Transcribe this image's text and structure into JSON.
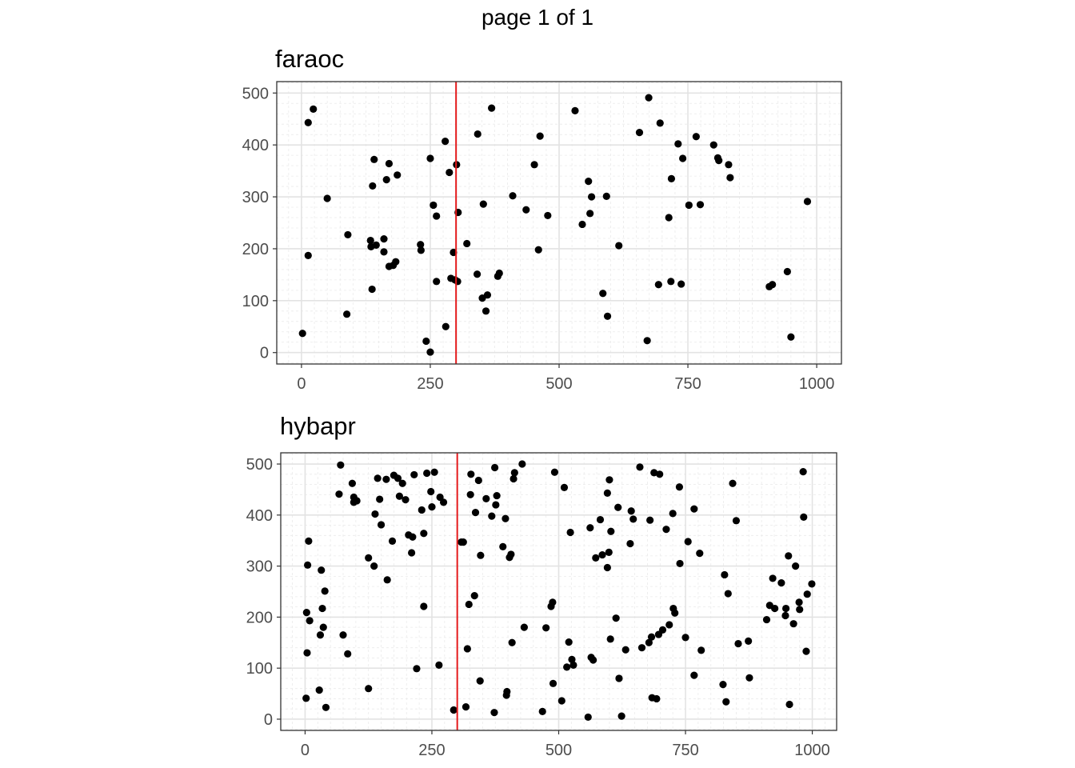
{
  "page_label": "page 1 of 1",
  "chart_data": [
    {
      "type": "scatter",
      "title": "faraoc",
      "xlabel": "",
      "ylabel": "",
      "xlim": [
        -48,
        1048
      ],
      "ylim": [
        -22,
        522
      ],
      "xticks": [
        0,
        250,
        500,
        750,
        1000
      ],
      "yticks": [
        0,
        100,
        200,
        300,
        400,
        500
      ],
      "grid": true,
      "reference_line": {
        "axis": "x",
        "value": 300,
        "color": "#e41a1c"
      },
      "points": [
        [
          2,
          37
        ],
        [
          13,
          443
        ],
        [
          23,
          469
        ],
        [
          13,
          187
        ],
        [
          50,
          297
        ],
        [
          90,
          227
        ],
        [
          88,
          74
        ],
        [
          137,
          122
        ],
        [
          134,
          216
        ],
        [
          135,
          204
        ],
        [
          138,
          321
        ],
        [
          141,
          372
        ],
        [
          145,
          207
        ],
        [
          160,
          219
        ],
        [
          160,
          194
        ],
        [
          165,
          333
        ],
        [
          170,
          166
        ],
        [
          170,
          364
        ],
        [
          178,
          168
        ],
        [
          183,
          175
        ],
        [
          186,
          342
        ],
        [
          231,
          208
        ],
        [
          232,
          197
        ],
        [
          242,
          22
        ],
        [
          250,
          1
        ],
        [
          250,
          374
        ],
        [
          256,
          284
        ],
        [
          262,
          137
        ],
        [
          262,
          263
        ],
        [
          279,
          407
        ],
        [
          280,
          50
        ],
        [
          287,
          347
        ],
        [
          290,
          143
        ],
        [
          295,
          193
        ],
        [
          298,
          140
        ],
        [
          301,
          362
        ],
        [
          303,
          137
        ],
        [
          304,
          270
        ],
        [
          321,
          210
        ],
        [
          341,
          151
        ],
        [
          342,
          421
        ],
        [
          351,
          105
        ],
        [
          353,
          286
        ],
        [
          358,
          80
        ],
        [
          361,
          111
        ],
        [
          369,
          471
        ],
        [
          381,
          147
        ],
        [
          384,
          153
        ],
        [
          410,
          302
        ],
        [
          436,
          275
        ],
        [
          452,
          362
        ],
        [
          460,
          198
        ],
        [
          463,
          417
        ],
        [
          478,
          264
        ],
        [
          531,
          466
        ],
        [
          545,
          247
        ],
        [
          557,
          330
        ],
        [
          560,
          268
        ],
        [
          563,
          300
        ],
        [
          585,
          114
        ],
        [
          592,
          301
        ],
        [
          594,
          70
        ],
        [
          616,
          206
        ],
        [
          656,
          424
        ],
        [
          671,
          23
        ],
        [
          674,
          491
        ],
        [
          693,
          131
        ],
        [
          696,
          442
        ],
        [
          713,
          260
        ],
        [
          717,
          137
        ],
        [
          718,
          335
        ],
        [
          731,
          402
        ],
        [
          737,
          132
        ],
        [
          740,
          374
        ],
        [
          752,
          284
        ],
        [
          766,
          416
        ],
        [
          774,
          285
        ],
        [
          800,
          400
        ],
        [
          808,
          375
        ],
        [
          810,
          370
        ],
        [
          829,
          362
        ],
        [
          832,
          337
        ],
        [
          908,
          127
        ],
        [
          914,
          131
        ],
        [
          943,
          156
        ],
        [
          950,
          30
        ],
        [
          982,
          291
        ]
      ]
    },
    {
      "type": "scatter",
      "title": "hybapr",
      "xlabel": "",
      "ylabel": "",
      "xlim": [
        -48,
        1048
      ],
      "ylim": [
        -22,
        522
      ],
      "xticks": [
        0,
        250,
        500,
        750,
        1000
      ],
      "yticks": [
        0,
        100,
        200,
        300,
        400,
        500
      ],
      "grid": true,
      "reference_line": {
        "axis": "x",
        "value": 300,
        "color": "#e41a1c"
      },
      "points": [
        [
          2,
          41
        ],
        [
          3,
          209
        ],
        [
          4,
          130
        ],
        [
          5,
          302
        ],
        [
          7,
          349
        ],
        [
          9,
          193
        ],
        [
          28,
          57
        ],
        [
          30,
          165
        ],
        [
          32,
          292
        ],
        [
          34,
          217
        ],
        [
          36,
          180
        ],
        [
          39,
          251
        ],
        [
          41,
          23
        ],
        [
          67,
          441
        ],
        [
          70,
          498
        ],
        [
          75,
          165
        ],
        [
          84,
          128
        ],
        [
          93,
          462
        ],
        [
          96,
          435
        ],
        [
          96,
          425
        ],
        [
          102,
          428
        ],
        [
          125,
          60
        ],
        [
          125,
          316
        ],
        [
          136,
          300
        ],
        [
          138,
          402
        ],
        [
          143,
          472
        ],
        [
          147,
          431
        ],
        [
          150,
          381
        ],
        [
          160,
          470
        ],
        [
          162,
          273
        ],
        [
          172,
          349
        ],
        [
          175,
          478
        ],
        [
          183,
          472
        ],
        [
          186,
          437
        ],
        [
          192,
          462
        ],
        [
          198,
          430
        ],
        [
          204,
          361
        ],
        [
          210,
          326
        ],
        [
          212,
          357
        ],
        [
          215,
          479
        ],
        [
          220,
          99
        ],
        [
          230,
          410
        ],
        [
          234,
          221
        ],
        [
          234,
          364
        ],
        [
          240,
          482
        ],
        [
          248,
          446
        ],
        [
          250,
          416
        ],
        [
          255,
          484
        ],
        [
          264,
          106
        ],
        [
          266,
          435
        ],
        [
          273,
          425
        ],
        [
          293,
          18
        ],
        [
          308,
          347
        ],
        [
          312,
          347
        ],
        [
          317,
          24
        ],
        [
          320,
          138
        ],
        [
          323,
          225
        ],
        [
          326,
          440
        ],
        [
          327,
          480
        ],
        [
          334,
          242
        ],
        [
          336,
          405
        ],
        [
          342,
          468
        ],
        [
          345,
          75
        ],
        [
          346,
          321
        ],
        [
          357,
          432
        ],
        [
          368,
          398
        ],
        [
          373,
          13
        ],
        [
          374,
          493
        ],
        [
          376,
          420
        ],
        [
          378,
          438
        ],
        [
          390,
          338
        ],
        [
          395,
          393
        ],
        [
          397,
          47
        ],
        [
          398,
          54
        ],
        [
          403,
          317
        ],
        [
          406,
          323
        ],
        [
          408,
          150
        ],
        [
          411,
          471
        ],
        [
          413,
          483
        ],
        [
          428,
          500
        ],
        [
          432,
          180
        ],
        [
          468,
          15
        ],
        [
          475,
          179
        ],
        [
          485,
          221
        ],
        [
          488,
          229
        ],
        [
          489,
          70
        ],
        [
          492,
          484
        ],
        [
          506,
          36
        ],
        [
          511,
          454
        ],
        [
          516,
          102
        ],
        [
          520,
          151
        ],
        [
          523,
          366
        ],
        [
          526,
          117
        ],
        [
          529,
          106
        ],
        [
          558,
          4
        ],
        [
          562,
          375
        ],
        [
          564,
          121
        ],
        [
          568,
          116
        ],
        [
          573,
          316
        ],
        [
          582,
          391
        ],
        [
          586,
          322
        ],
        [
          596,
          443
        ],
        [
          596,
          297
        ],
        [
          599,
          327
        ],
        [
          600,
          469
        ],
        [
          602,
          157
        ],
        [
          603,
          368
        ],
        [
          613,
          198
        ],
        [
          617,
          415
        ],
        [
          619,
          80
        ],
        [
          624,
          6
        ],
        [
          632,
          136
        ],
        [
          641,
          344
        ],
        [
          643,
          408
        ],
        [
          647,
          392
        ],
        [
          660,
          494
        ],
        [
          664,
          140
        ],
        [
          678,
          150
        ],
        [
          680,
          390
        ],
        [
          683,
          161
        ],
        [
          684,
          42
        ],
        [
          688,
          483
        ],
        [
          693,
          40
        ],
        [
          697,
          166
        ],
        [
          699,
          480
        ],
        [
          705,
          175
        ],
        [
          712,
          372
        ],
        [
          718,
          185
        ],
        [
          725,
          403
        ],
        [
          726,
          217
        ],
        [
          729,
          208
        ],
        [
          738,
          455
        ],
        [
          739,
          305
        ],
        [
          750,
          160
        ],
        [
          755,
          348
        ],
        [
          767,
          86
        ],
        [
          767,
          412
        ],
        [
          778,
          325
        ],
        [
          781,
          135
        ],
        [
          824,
          68
        ],
        [
          827,
          283
        ],
        [
          830,
          34
        ],
        [
          834,
          246
        ],
        [
          843,
          462
        ],
        [
          850,
          389
        ],
        [
          854,
          148
        ],
        [
          874,
          153
        ],
        [
          876,
          81
        ],
        [
          910,
          195
        ],
        [
          916,
          223
        ],
        [
          922,
          276
        ],
        [
          926,
          217
        ],
        [
          939,
          267
        ],
        [
          947,
          203
        ],
        [
          948,
          217
        ],
        [
          953,
          320
        ],
        [
          955,
          29
        ],
        [
          963,
          187
        ],
        [
          967,
          300
        ],
        [
          974,
          229
        ],
        [
          975,
          215
        ],
        [
          982,
          485
        ],
        [
          983,
          396
        ],
        [
          988,
          133
        ],
        [
          990,
          245
        ],
        [
          999,
          265
        ]
      ]
    }
  ]
}
